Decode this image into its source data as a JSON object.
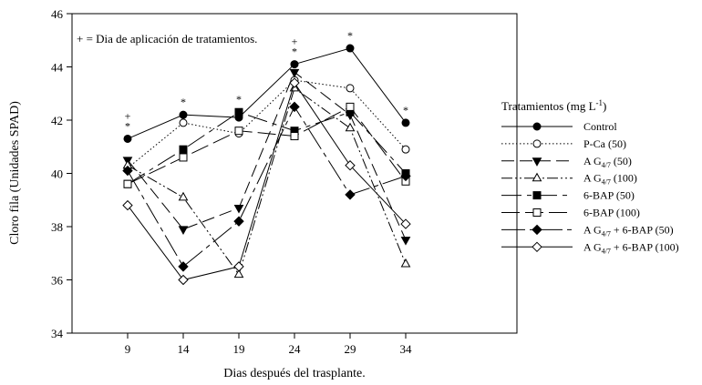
{
  "chart_data": {
    "type": "line",
    "xlabel": "Dias después del trasplante.",
    "ylabel": "Cloro fila (Unidades SPAD)",
    "annotation": "+ = Dia de aplicación  de tratamientos.",
    "xlim": [
      4,
      44
    ],
    "ylim": [
      34,
      46
    ],
    "x": [
      9,
      14,
      19,
      24,
      29,
      34
    ],
    "x_ticks": [
      "9",
      "14",
      "19",
      "24",
      "29",
      "34"
    ],
    "y_ticks": [
      "34",
      "36",
      "38",
      "40",
      "42",
      "44",
      "46"
    ],
    "legend_title": "Tratamientos (mg L",
    "legend_title_sup": "-1",
    "legend_title_end": ")",
    "legend_position": "right",
    "markers": [
      {
        "x": 9,
        "symbols": "+\n*"
      },
      {
        "x": 14,
        "symbols": "*"
      },
      {
        "x": 19,
        "symbols": "*"
      },
      {
        "x": 24,
        "symbols": "+\n*"
      },
      {
        "x": 29,
        "symbols": "*"
      },
      {
        "x": 34,
        "symbols": "*"
      }
    ],
    "series": [
      {
        "name": "Control",
        "label_parts": [
          "Control"
        ],
        "dash": "",
        "marker": "circle",
        "fill": "#000",
        "values": [
          41.3,
          42.2,
          42.1,
          44.1,
          44.7,
          41.9
        ]
      },
      {
        "name": "P-Ca (50)",
        "label_parts": [
          "P-Ca (50)"
        ],
        "dash": "1.5,2.5",
        "marker": "circle",
        "fill": "#fff",
        "values": [
          40.2,
          41.9,
          41.5,
          43.5,
          43.2,
          40.9
        ]
      },
      {
        "name": "AG4/7 (50)",
        "label_parts": [
          "A G",
          "4/7",
          " (50)"
        ],
        "dash": "14,6",
        "marker": "triangle-down",
        "fill": "#000",
        "values": [
          40.5,
          37.9,
          38.7,
          43.8,
          42.2,
          37.5
        ]
      },
      {
        "name": "AG4/7 (100)",
        "label_parts": [
          "A G",
          "4/7",
          " (100)"
        ],
        "dash": "12,3,2,3,2,3",
        "marker": "triangle-up",
        "fill": "#fff",
        "values": [
          40.3,
          39.1,
          36.2,
          43.2,
          41.7,
          36.6
        ]
      },
      {
        "name": "6-BAP (50)",
        "label_parts": [
          "6-BAP (50)"
        ],
        "dash": "22,6,5,6",
        "marker": "square",
        "fill": "#000",
        "values": [
          39.6,
          40.9,
          42.3,
          41.6,
          42.3,
          40.0
        ]
      },
      {
        "name": "6-BAP (100)",
        "label_parts": [
          "6-BAP (100)"
        ],
        "dash": "20,6",
        "marker": "square",
        "fill": "#fff",
        "values": [
          39.6,
          40.6,
          41.6,
          41.4,
          42.5,
          39.7
        ]
      },
      {
        "name": "AG4/7 + 6-BAP (50)",
        "label_parts": [
          "A G",
          "4/7",
          " + 6-BAP (50)"
        ],
        "dash": "26,5,5,5",
        "marker": "diamond",
        "fill": "#000",
        "values": [
          40.1,
          36.5,
          38.2,
          42.5,
          39.2,
          39.9
        ]
      },
      {
        "name": "AG4/7 + 6-BAP (100)",
        "label_parts": [
          "A G",
          "4/7",
          " + 6-BAP (100)"
        ],
        "dash": "",
        "marker": "diamond",
        "fill": "#fff",
        "values": [
          38.8,
          36.0,
          36.5,
          43.4,
          40.3,
          38.1
        ]
      }
    ]
  }
}
